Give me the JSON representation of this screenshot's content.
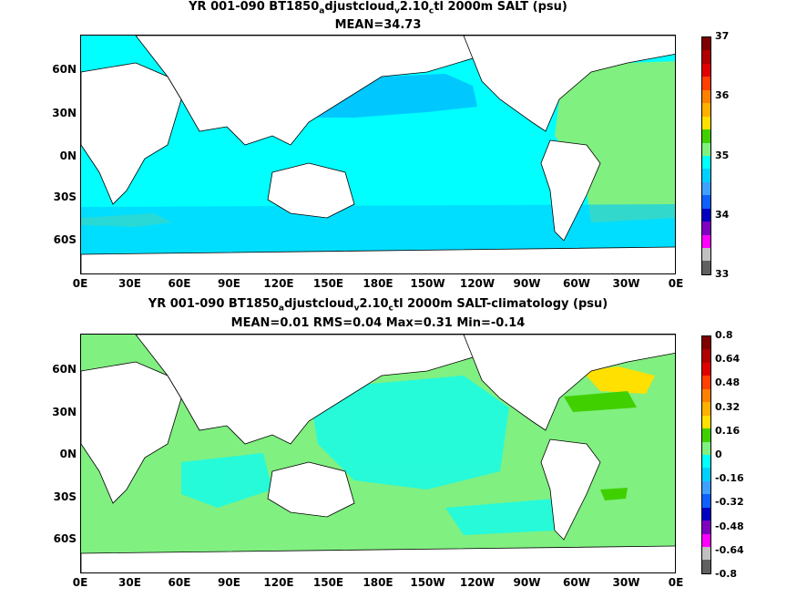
{
  "panels": [
    {
      "title": "YR 001-090 BT1850",
      "title_sub1": "a",
      "title_mid": "djustcloud",
      "title_sub2": "v",
      "title_mid2": "2.10",
      "title_sub3": "c",
      "title_end": "tl 2000m SALT (psu)",
      "stats": "MEAN=34.73",
      "lat_labels": [
        "60N",
        "30N",
        "0N",
        "30S",
        "60S"
      ],
      "lon_labels": [
        "0E",
        "30E",
        "60E",
        "90E",
        "120E",
        "150E",
        "180E",
        "150W",
        "120W",
        "90W",
        "60W",
        "30W",
        "0E"
      ],
      "colorbar_labels": [
        "37",
        "36",
        "35",
        "34",
        "33"
      ],
      "colorbar_colors": [
        "#7f0000",
        "#b00000",
        "#e00000",
        "#ff4000",
        "#ff8000",
        "#ffb000",
        "#ffe000",
        "#40d000",
        "#80f080",
        "#00ffff",
        "#00d0ff",
        "#40a0ff",
        "#1060ff",
        "#0000c0",
        "#8000c0",
        "#ff00ff",
        "#c0c0c0",
        "#606060"
      ],
      "ocean_color": "#00ffff"
    },
    {
      "title": "YR 001-090 BT1850",
      "title_sub1": "a",
      "title_mid": "djustcloud",
      "title_sub2": "v",
      "title_mid2": "2.10",
      "title_sub3": "c",
      "title_end": "tl 2000m SALT-climatology (psu)",
      "stats": "MEAN=0.01   RMS=0.04   Max=0.31   Min=-0.14",
      "lat_labels": [
        "60N",
        "30N",
        "0N",
        "30S",
        "60S"
      ],
      "lon_labels": [
        "0E",
        "30E",
        "60E",
        "90E",
        "120E",
        "150E",
        "180E",
        "150W",
        "120W",
        "90W",
        "60W",
        "30W",
        "0E"
      ],
      "colorbar_labels": [
        "0.8",
        "0.64",
        "0.48",
        "0.32",
        "0.16",
        "0",
        "-0.16",
        "-0.32",
        "-0.48",
        "-0.64",
        "-0.8"
      ],
      "colorbar_colors": [
        "#7f0000",
        "#b00000",
        "#e00000",
        "#ff4000",
        "#ff8000",
        "#ffb000",
        "#ffe000",
        "#40d000",
        "#80f080",
        "#00ffff",
        "#00d0ff",
        "#40a0ff",
        "#1060ff",
        "#0000c0",
        "#8000c0",
        "#ff00ff",
        "#c0c0c0",
        "#606060"
      ],
      "ocean_color": "#80f080"
    }
  ]
}
